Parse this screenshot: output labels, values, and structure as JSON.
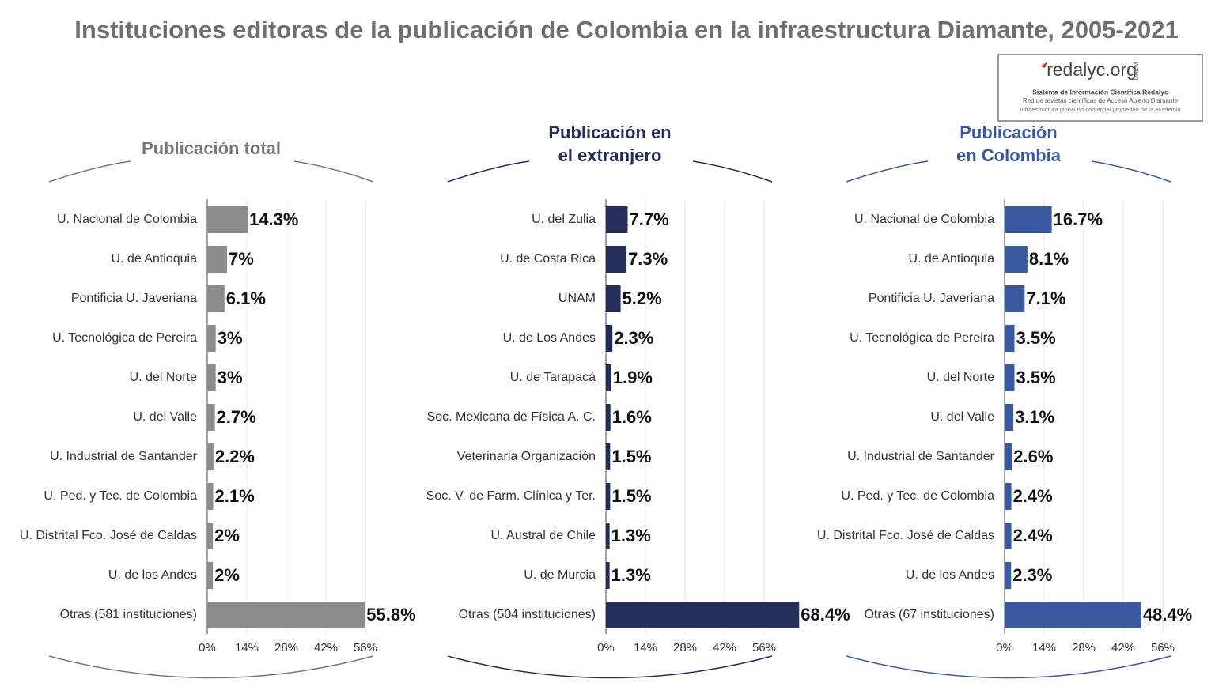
{
  "title": "Instituciones editoras de la publicación de Colombia en la infraestructura Diamante, 2005-2021",
  "logo": {
    "name": "redalyc.org",
    "side": "UAEM",
    "lines": [
      "Sistema de Información Científica Redalyc",
      "Red de revistas científicas de Acceso Abierto Diamante",
      "Infraestructura global no comercial propiedad de la academia"
    ]
  },
  "chart_data": [
    {
      "type": "bar",
      "orientation": "horizontal",
      "title": [
        "Publicación total"
      ],
      "title_color": "#777777",
      "color": "#8c8c8c",
      "categories": [
        "U. Nacional de Colombia",
        "U. de Antioquia",
        "Pontificia U. Javeriana",
        "U. Tecnológica de Pereira",
        "U. del Norte",
        "U. del Valle",
        "U. Industrial de Santander",
        "U. Ped. y Tec. de Colombia",
        "U. Distrital Fco. José de Caldas",
        "U. de los Andes",
        "Otras (581 instituciones)"
      ],
      "values": [
        14.3,
        7,
        6.1,
        3,
        3,
        2.7,
        2.2,
        2.1,
        2,
        2,
        55.8
      ],
      "value_labels": [
        "14.3%",
        "7%",
        "6.1%",
        "3%",
        "3%",
        "2.7%",
        "2.2%",
        "2.1%",
        "2%",
        "2%",
        "55.8%"
      ],
      "xlim": [
        0,
        56
      ],
      "xticks": [
        {
          "value": 0,
          "label": "0%"
        },
        {
          "value": 14,
          "label": "14%"
        },
        {
          "value": 28,
          "label": "28%"
        },
        {
          "value": 42,
          "label": "42%"
        },
        {
          "value": 56,
          "label": "56%"
        }
      ],
      "grid": true
    },
    {
      "type": "bar",
      "orientation": "horizontal",
      "title": [
        "Publicación en",
        "el extranjero"
      ],
      "title_color": "#252d59",
      "color": "#252d59",
      "categories": [
        "U. del Zulia",
        "U. de Costa Rica",
        "UNAM",
        "U. de Los Andes",
        "U. de Tarapacá",
        "Soc. Mexicana de Física A. C.",
        "Veterinaria Organización",
        "Soc. V. de Farm. Clínica y Ter.",
        "U. Austral de Chile",
        "U. de Murcia",
        "Otras (504 instituciones)"
      ],
      "values": [
        7.7,
        7.3,
        5.2,
        2.3,
        1.9,
        1.6,
        1.5,
        1.5,
        1.3,
        1.3,
        68.4
      ],
      "value_labels": [
        "7.7%",
        "7.3%",
        "5.2%",
        "2.3%",
        "1.9%",
        "1.6%",
        "1.5%",
        "1.5%",
        "1.3%",
        "1.3%",
        "68.4%"
      ],
      "xlim": [
        0,
        56
      ],
      "xticks": [
        {
          "value": 0,
          "label": "0%"
        },
        {
          "value": 14,
          "label": "14%"
        },
        {
          "value": 28,
          "label": "28%"
        },
        {
          "value": 42,
          "label": "42%"
        },
        {
          "value": 56,
          "label": "56%"
        }
      ],
      "grid": true
    },
    {
      "type": "bar",
      "orientation": "horizontal",
      "title": [
        "Publicación",
        "en Colombia"
      ],
      "title_color": "#3a5aa0",
      "color": "#3a5aa0",
      "categories": [
        "U. Nacional de Colombia",
        "U. de Antioquia",
        "Pontificia U. Javeriana",
        "U. Tecnológica de Pereira",
        "U. del Norte",
        "U. del Valle",
        "U. Industrial de Santander",
        "U. Ped. y Tec. de Colombia",
        "U. Distrital Fco. José de Caldas",
        "U. de los Andes",
        "Otras (67 instituciones)"
      ],
      "values": [
        16.7,
        8.1,
        7.1,
        3.5,
        3.5,
        3.1,
        2.6,
        2.4,
        2.4,
        2.3,
        48.4
      ],
      "value_labels": [
        "16.7%",
        "8.1%",
        "7.1%",
        "3.5%",
        "3.5%",
        "3.1%",
        "2.6%",
        "2.4%",
        "2.4%",
        "2.3%",
        "48.4%"
      ],
      "xlim": [
        0,
        56
      ],
      "xticks": [
        {
          "value": 0,
          "label": "0%"
        },
        {
          "value": 14,
          "label": "14%"
        },
        {
          "value": 28,
          "label": "28%"
        },
        {
          "value": 42,
          "label": "42%"
        },
        {
          "value": 56,
          "label": "56%"
        }
      ],
      "grid": true
    }
  ]
}
